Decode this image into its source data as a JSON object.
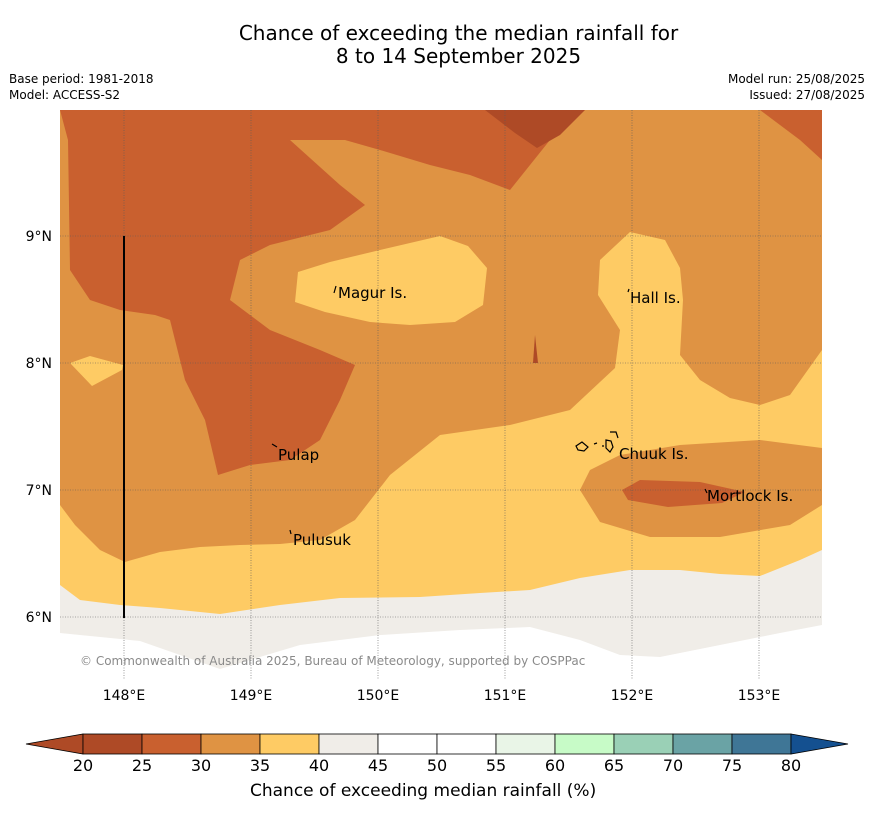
{
  "title": {
    "line1": "Chance of exceeding the median rainfall for",
    "line2": "8 to 14 September 2025"
  },
  "meta": {
    "base_period": "Base period: 1981-2018",
    "model": "Model: ACCESS-S2",
    "model_run": "Model run: 25/08/2025",
    "issued": "Issued: 27/08/2025"
  },
  "map": {
    "lat_ticks": [
      "9°N",
      "8°N",
      "7°N",
      "6°N"
    ],
    "lon_ticks": [
      "148°E",
      "149°E",
      "150°E",
      "151°E",
      "152°E",
      "153°E"
    ],
    "places": [
      "Magur Is.",
      "Hall Is.",
      "Pulap",
      "Chuuk Is.",
      "Mortlock Is.",
      "Pulusuk"
    ],
    "copyright": "© Commonwealth of Australia 2025, Bureau of Meteorology, supported by COSPPac"
  },
  "colorbar": {
    "title": "Chance of exceeding median rainfall (%)",
    "tick_labels": [
      "20",
      "25",
      "30",
      "35",
      "40",
      "45",
      "50",
      "55",
      "60",
      "65",
      "70",
      "75",
      "80"
    ],
    "colors": [
      "#ae4a26",
      "#ae4a26",
      "#c9602f",
      "#df9343",
      "#fecb64",
      "#f0ede8",
      "#ffffff",
      "#ffffff",
      "#e9f5e7",
      "#c7fbc7",
      "#9ad0b6",
      "#6aa3a5",
      "#3f7696",
      "#145090"
    ]
  }
}
